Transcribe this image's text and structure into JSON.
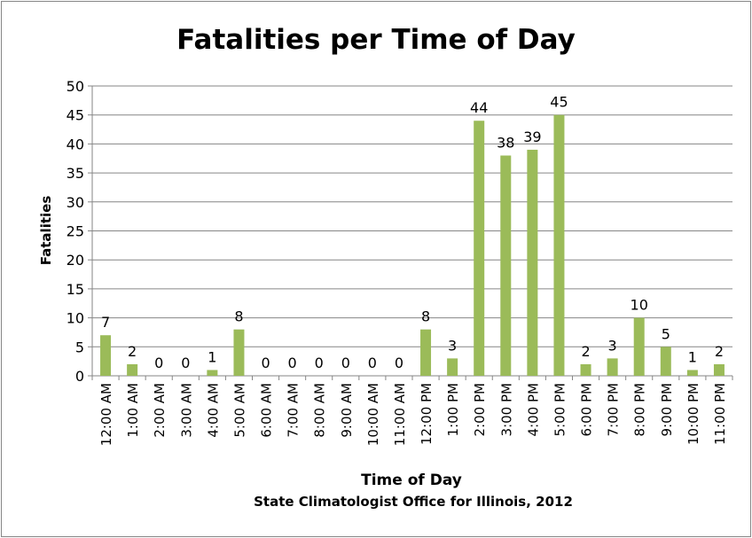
{
  "chart_data": {
    "type": "bar",
    "title": "Fatalities per Time of Day",
    "xlabel": "Time of Day",
    "subtitle": "State Climatologist Office for Illinois, 2012",
    "ylabel": "Fatalities",
    "ylim": [
      0,
      50
    ],
    "yticks": [
      0,
      5,
      10,
      15,
      20,
      25,
      30,
      35,
      40,
      45,
      50
    ],
    "grid": true,
    "bar_color": "#9BBB59",
    "categories": [
      "12:00 AM",
      "1:00 AM",
      "2:00 AM",
      "3:00 AM",
      "4:00 AM",
      "5:00 AM",
      "6:00 AM",
      "7:00 AM",
      "8:00 AM",
      "9:00 AM",
      "10:00 AM",
      "11:00 AM",
      "12:00 PM",
      "1:00 PM",
      "2:00 PM",
      "3:00 PM",
      "4:00 PM",
      "5:00 PM",
      "6:00 PM",
      "7:00 PM",
      "8:00 PM",
      "9:00 PM",
      "10:00 PM",
      "11:00 PM"
    ],
    "values": [
      7,
      2,
      0,
      0,
      1,
      8,
      0,
      0,
      0,
      0,
      0,
      0,
      8,
      3,
      44,
      38,
      39,
      45,
      2,
      3,
      10,
      5,
      1,
      2
    ]
  }
}
